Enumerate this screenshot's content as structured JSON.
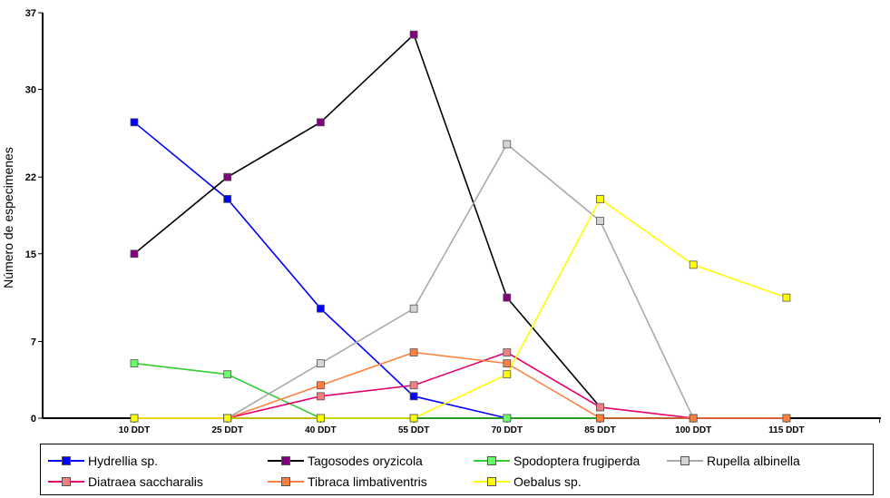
{
  "chart_data": {
    "type": "line",
    "title": "",
    "xlabel": "",
    "ylabel": "Número de especimenes",
    "categories": [
      "10 DDT",
      "25 DDT",
      "40 DDT",
      "55 DDT",
      "70 DDT",
      "85 DDT",
      "100 DDT",
      "115 DDT"
    ],
    "yticks": [
      "0",
      "7",
      "15",
      "22",
      "30",
      "37"
    ],
    "ylim": [
      0,
      37
    ],
    "legend_position": "bottom",
    "grid": false,
    "series": [
      {
        "name": "Hydrellia sp.",
        "color": "#0000ff",
        "marker": "#0000ff",
        "values": [
          27,
          20,
          10,
          2,
          0,
          null,
          null,
          null
        ]
      },
      {
        "name": "Tagosodes oryzicola",
        "color": "#000000",
        "marker": "#800080",
        "values": [
          15,
          22,
          27,
          35,
          11,
          1,
          null,
          null
        ]
      },
      {
        "name": "Spodoptera frugiperda",
        "color": "#33cc33",
        "marker": "#66ff66",
        "values": [
          5,
          4,
          0,
          0,
          0,
          0,
          null,
          null
        ]
      },
      {
        "name": "Rupella albinella",
        "color": "#aaaaaa",
        "marker": "#d4d4d4",
        "values": [
          0,
          0,
          5,
          10,
          25,
          18,
          0,
          null
        ]
      },
      {
        "name": "Diatraea saccharalis",
        "color": "#e6006e",
        "marker": "#f08080",
        "values": [
          0,
          0,
          2,
          3,
          6,
          1,
          0,
          0
        ]
      },
      {
        "name": "Tibraca limbativentris",
        "color": "#ff7f3f",
        "marker": "#ff7f3f",
        "values": [
          0,
          0,
          3,
          6,
          5,
          0,
          0,
          0
        ]
      },
      {
        "name": "Oebalus sp.",
        "color": "#ffff00",
        "marker": "#ffff00",
        "values": [
          0,
          0,
          0,
          0,
          4,
          20,
          14,
          11
        ]
      }
    ]
  }
}
